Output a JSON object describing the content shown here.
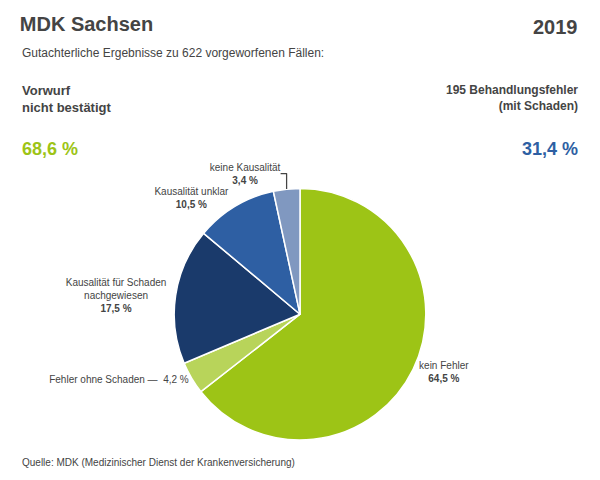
{
  "chart_data": {
    "type": "pie",
    "title": "MDK Sachsen",
    "subtitle": "Gutachterliche Ergebnisse zu 622 vorgeworfenen Fällen:",
    "footer": "Quelle: MDK (Medizinischer Dienst der Krankenversicherung)",
    "categories": [
      "kein Fehler",
      "Fehler ohne Schaden —  4,2 %",
      "Kausalität für Schaden\nnachgewiesen",
      "Kausalität unklar",
      "keine Kausalität"
    ],
    "values": [
      64.5,
      4.2,
      17.5,
      10.5,
      3.4
    ],
    "value_labels": [
      "64,5 %",
      null,
      "17,5 %",
      "10,5 %",
      "3,4 %"
    ],
    "colors": [
      "#9dc416",
      "#b8d45a",
      "#1a3a6b",
      "#2e5fa3",
      "#8098c0"
    ],
    "data_labels": true,
    "annotations": [
      {
        "text": "2019"
      },
      {
        "text": "Vorwurf\nnicht bestätigt"
      },
      {
        "text": "68,6 %",
        "color": "#9dc416"
      },
      {
        "text": "195 Behandlungsfehler\n(mit Schaden)"
      },
      {
        "text": "31,4 %",
        "color": "#2e5fa3"
      }
    ]
  }
}
